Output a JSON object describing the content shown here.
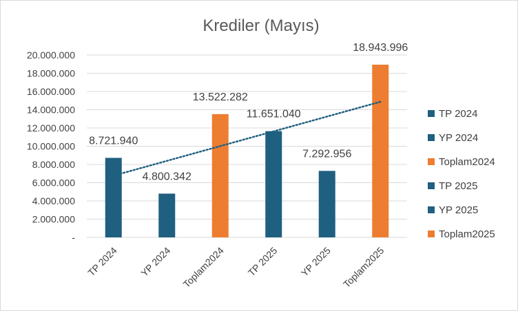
{
  "chart_data": {
    "type": "bar",
    "title": "Krediler (Mayıs)",
    "categories": [
      "TP 2024",
      "YP 2024",
      "Toplam2024",
      "TP 2025",
      "YP 2025",
      "Toplam2025"
    ],
    "values": [
      8721940,
      4800342,
      13522282,
      11651040,
      7292956,
      18943996
    ],
    "data_labels": [
      "8.721.940",
      "4.800.342",
      "13.522.282",
      "11.651.040",
      "7.292.956",
      "18.943.996"
    ],
    "bar_colors": [
      "#1f5f7f",
      "#1f5f7f",
      "#ed7d31",
      "#1f5f7f",
      "#1f5f7f",
      "#ed7d31"
    ],
    "ylim": [
      0,
      20000000
    ],
    "y_ticks": [
      0,
      2000000,
      4000000,
      6000000,
      8000000,
      10000000,
      12000000,
      14000000,
      16000000,
      18000000,
      20000000
    ],
    "y_tick_labels": [
      "-",
      "2.000.000",
      "4.000.000",
      "6.000.000",
      "8.000.000",
      "10.000.000",
      "12.000.000",
      "14.000.000",
      "16.000.000",
      "18.000.000",
      "20.000.000"
    ],
    "grid": true,
    "trendline": {
      "type": "linear",
      "style": "dotted",
      "color": "#1f5f7f"
    },
    "legend": {
      "placement": "right",
      "entries": [
        {
          "label": "TP 2024",
          "color": "#1f5f7f"
        },
        {
          "label": "YP 2024",
          "color": "#1f5f7f"
        },
        {
          "label": "Toplam2024",
          "color": "#ed7d31"
        },
        {
          "label": "TP 2025",
          "color": "#1f5f7f"
        },
        {
          "label": "YP 2025",
          "color": "#1f5f7f"
        },
        {
          "label": "Toplam2025",
          "color": "#ed7d31"
        }
      ]
    }
  }
}
